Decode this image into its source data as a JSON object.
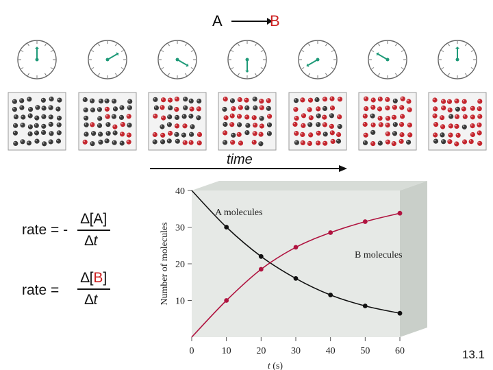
{
  "reaction": {
    "reactant": "A",
    "product": "B",
    "reactant_color": "#111111",
    "product_color": "#cc1f1f"
  },
  "timeline": {
    "label": "time"
  },
  "colors": {
    "a_molecule": "#3a3a3a",
    "b_molecule": "#c4262e",
    "clock_hand": "#1e9a78",
    "a_curve": "#111111",
    "b_curve": "#b01440",
    "graph_panel": "#e6e9e6",
    "graph_side": "#c9cfc9"
  },
  "snapshots": {
    "times_s": [
      0,
      10,
      20,
      30,
      40,
      50,
      60
    ],
    "a_count": [
      40,
      30,
      22,
      16,
      11,
      8,
      6
    ],
    "b_count": [
      0,
      10,
      18,
      24,
      29,
      32,
      34
    ]
  },
  "rate_expressions": [
    {
      "lhs": "rate = -",
      "numerator_prefix": "∆[",
      "species": "A",
      "numerator_suffix": "]",
      "denominator_delta": "∆",
      "denominator_var": "t",
      "species_color": "#111111"
    },
    {
      "lhs": "rate =",
      "numerator_prefix": "∆[",
      "species": "B",
      "numerator_suffix": "]",
      "denominator_delta": "∆",
      "denominator_var": "t",
      "species_color": "#cc1f1f"
    }
  ],
  "chart_data": {
    "type": "line",
    "x": [
      0,
      10,
      20,
      30,
      40,
      50,
      60
    ],
    "xticks": [
      "0",
      "10",
      "20",
      "30",
      "40",
      "50",
      "60"
    ],
    "yticks": [
      "10",
      "20",
      "30",
      "40"
    ],
    "xlabel_var": "t",
    "xlabel_unit": "(s)",
    "ylabel": "Number of molecules",
    "xlim": [
      0,
      60
    ],
    "ylim": [
      0,
      40
    ],
    "series": [
      {
        "name": "A molecules",
        "values": [
          40,
          30,
          22,
          16,
          11.5,
          8.5,
          6.5
        ]
      },
      {
        "name": "B molecules",
        "values": [
          0,
          10,
          18.5,
          24.5,
          28.5,
          31.5,
          33.8
        ]
      }
    ]
  },
  "slide_number": "13.1"
}
